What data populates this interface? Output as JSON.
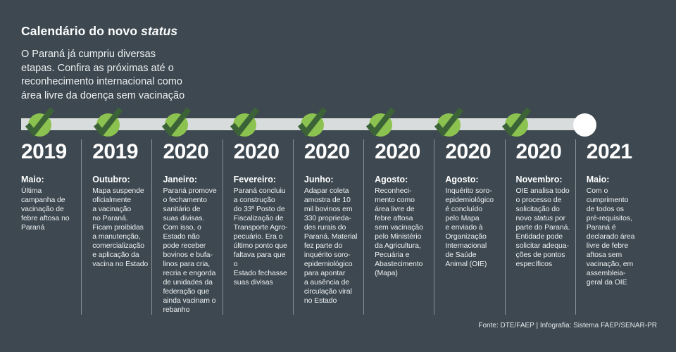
{
  "header": {
    "title": "Calendário do novo *status*",
    "subtitle": "O Paraná já cumpriu diversas\netapas. Confira as próximas até o\nreconhecimento internacional como\nárea livre da doença sem vacinação"
  },
  "timeline": {
    "bar_color": "#d8dcdc",
    "done_circle_color": "#8cc250",
    "check_color": "#3c6337",
    "pending_circle_color": "#ffffff",
    "background_color": "#3d4850",
    "milestones": [
      {
        "year": "2019",
        "month": "Maio:",
        "status": "done",
        "body": "Última\ncampanha de\nvacinação de\nfebre aftosa no\nParaná"
      },
      {
        "year": "2019",
        "month": "Outubro:",
        "status": "done",
        "body": "Mapa suspende\noficialmente\na vacinação\nno Paraná.\nFicam proibidas\na manutenção,\ncomercialização\ne aplicação da\nvacina no Estado"
      },
      {
        "year": "2020",
        "month": "Janeiro:",
        "status": "done",
        "body": "Paraná promove\no fechamento\nsanitário de\nsuas divisas.\nCom isso, o\nEstado não\npode receber\nbovinos e bufa-\nlinos para cria,\nrecria e engorda\nde unidades da\nfederação que\nainda vacinam o\nrebanho"
      },
      {
        "year": "2020",
        "month": "Fevereiro:",
        "status": "done",
        "body": "Paraná concluiu\na construção\ndo 33º Posto de\nFiscalização de\nTransporte Agro-\npecuário. Era o\núltimo ponto que\nfaltava para que o\nEstado fechasse\nsuas divisas"
      },
      {
        "year": "2020",
        "month": "Junho:",
        "status": "done",
        "body": "Adapar coleta\namostra de 10\nmil bovinos em\n330 proprieda-\ndes rurais do\nParaná. Material\nfez parte do\ninquérito soro-\nepidemiológico\npara apontar\na ausência de\ncirculação viral\nno Estado"
      },
      {
        "year": "2020",
        "month": "Agosto:",
        "status": "done",
        "body": "Reconheci-\nmento como\nárea livre de\nfebre aftosa\nsem vacinação\npelo Ministério\nda Agricultura,\nPecuária e\nAbastecimento\n(Mapa)"
      },
      {
        "year": "2020",
        "month": "Agosto:",
        "status": "done",
        "body": "Inquérito soro-\nepidemiológico\né concluído\npelo Mapa\ne enviado à\nOrganização\nInternacional\nde Saúde\nAnimal (OIE)"
      },
      {
        "year": "2020",
        "month": "Novembro:",
        "status": "done",
        "body": "OIE analisa todo\no processo de\nsolicitação do\nnovo *status* por\nparte do Paraná.\nEntidade pode\nsolicitar adequa-\nções de pontos\nespecíficos"
      },
      {
        "year": "2021",
        "month": "Maio:",
        "status": "pending",
        "body": "Com o\ncumprimento\nde todos os\npré-requisitos,\nParaná é\ndeclarado área\nlivre de febre\naftosa sem\nvacinação, em\nassembleia-\ngeral da OIE"
      }
    ]
  },
  "footer": {
    "credits": "Fonte: DTE/FAEP  |  Infografia: Sistema FAEP/SENAR-PR"
  }
}
